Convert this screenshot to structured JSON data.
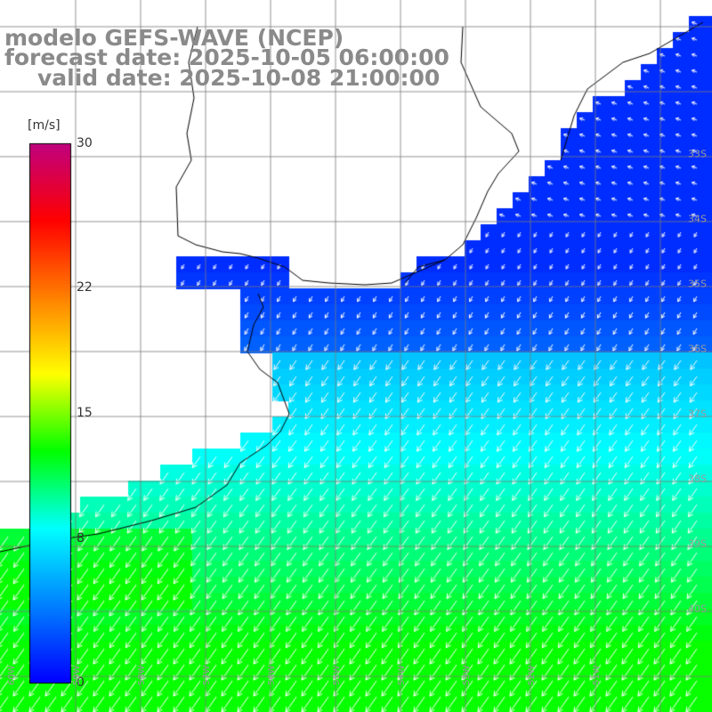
{
  "header": {
    "line1": "modelo GEFS-WAVE (NCEP)",
    "line2": "forecast date: 2025-10-05 06:00:00",
    "line3": "valid date: 2025-10-08 21:00:00"
  },
  "colorbar": {
    "units": "[m/s]",
    "min": 0,
    "max": 30,
    "ticks": [
      {
        "label": "30",
        "value": 30
      },
      {
        "label": "22",
        "value": 22
      },
      {
        "label": "15",
        "value": 15
      },
      {
        "label": "8",
        "value": 8
      },
      {
        "label": "0",
        "value": 0
      }
    ],
    "colors": [
      "#0000ff",
      "#0080ff",
      "#00ffff",
      "#00ff00",
      "#ffff00",
      "#ff8000",
      "#ff0000",
      "#c00080"
    ]
  },
  "map": {
    "lat_labels": [
      {
        "label": "33S",
        "lat": -33
      },
      {
        "label": "34S",
        "lat": -34
      },
      {
        "label": "35S",
        "lat": -35
      },
      {
        "label": "36S",
        "lat": -36
      },
      {
        "label": "37S",
        "lat": -37
      },
      {
        "label": "38S",
        "lat": -38
      },
      {
        "label": "39S",
        "lat": -39
      },
      {
        "label": "40S",
        "lat": -40
      }
    ],
    "lon_labels": [
      {
        "label": "60W",
        "lon": -60
      },
      {
        "label": "59W",
        "lon": -59
      },
      {
        "label": "58W",
        "lon": -58
      },
      {
        "label": "57W",
        "lon": -57
      },
      {
        "label": "56W",
        "lon": -56
      },
      {
        "label": "55W",
        "lon": -55
      },
      {
        "label": "54W",
        "lon": -54
      },
      {
        "label": "53W",
        "lon": -53
      },
      {
        "label": "52W",
        "lon": -52
      },
      {
        "label": "51W",
        "lon": -51
      }
    ],
    "colors": {
      "land": "#ffffff",
      "grid": "#7a7a7a",
      "coast": "#000000",
      "arrow": "#ffffff"
    }
  }
}
